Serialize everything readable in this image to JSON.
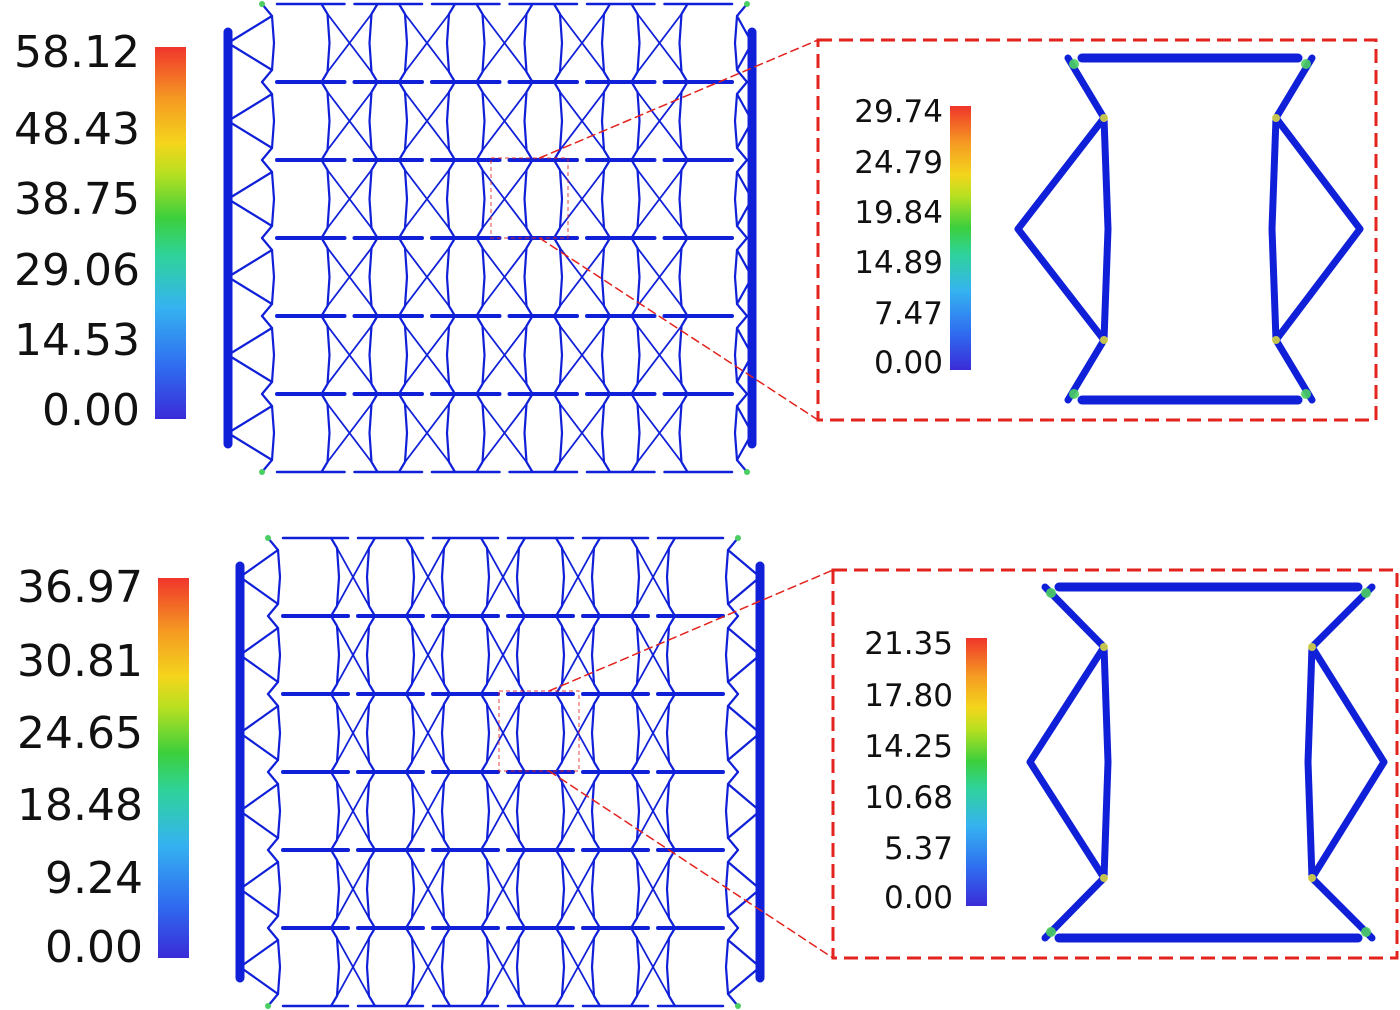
{
  "colors": {
    "structure_blue": "#1020d8",
    "zoom_frame_red": "#e3231e",
    "hot_spot_green": "#4ccf62",
    "hot_spot_yellow": "#e6e23a"
  },
  "panels": [
    {
      "id": "top",
      "colorbar_ticks": [
        "58.12",
        "48.43",
        "38.75",
        "29.06",
        "14.53",
        "0.00"
      ],
      "zoom_colorbar_ticks": [
        "29.74",
        "24.79",
        "19.84",
        "14.89",
        "7.47",
        "0.00"
      ]
    },
    {
      "id": "bottom",
      "colorbar_ticks": [
        "36.97",
        "30.81",
        "24.65",
        "18.48",
        "9.24",
        "0.00"
      ],
      "zoom_colorbar_ticks": [
        "21.35",
        "17.80",
        "14.25",
        "10.68",
        "5.37",
        "0.00"
      ]
    }
  ]
}
